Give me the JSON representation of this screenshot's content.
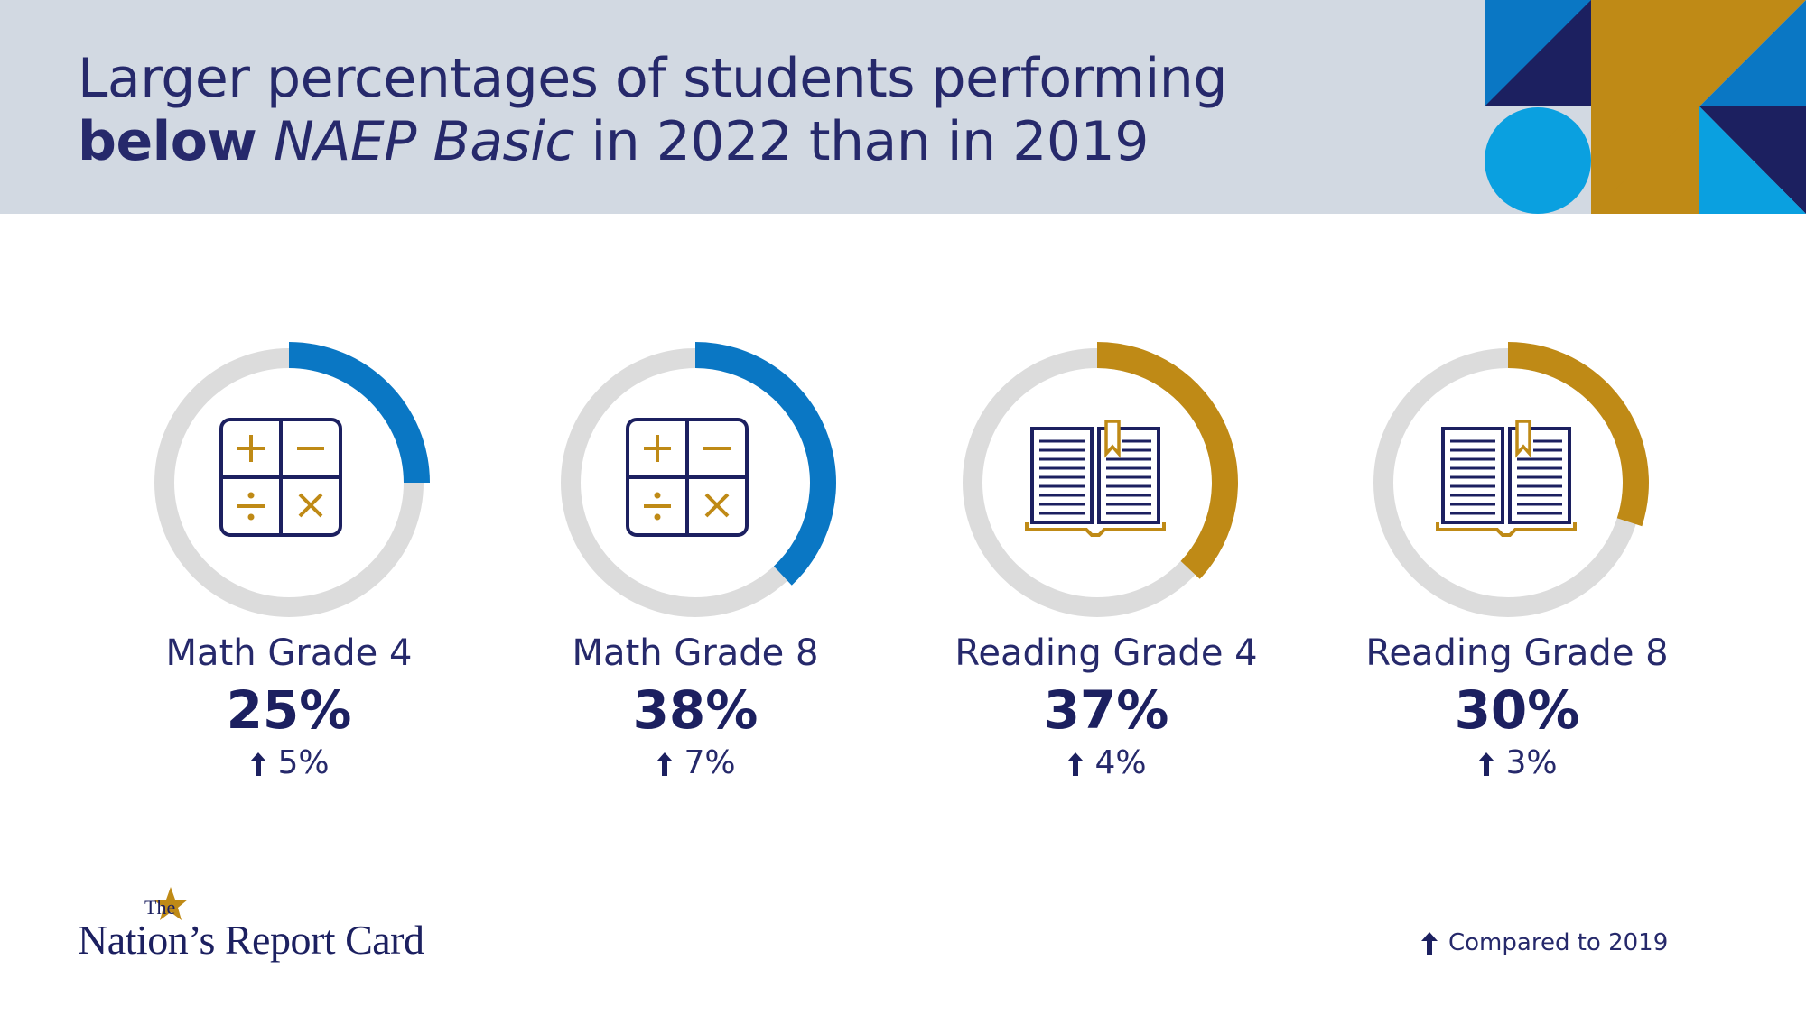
{
  "header": {
    "title_line1": "Larger percentages of students performing",
    "title_bold": "below",
    "title_italic": "NAEP Basic",
    "title_rest": "in 2022 than in 2019"
  },
  "colors": {
    "header_bg": "#d2d9e2",
    "math": "#0a77c4",
    "reading": "#bf8a16",
    "track": "#dcdcdc",
    "navy": "#1c2060"
  },
  "chart_data": {
    "type": "donut",
    "title": "Larger percentages of students performing below NAEP Basic in 2022 than in 2019",
    "categories": [
      "Math Grade 4",
      "Math Grade 8",
      "Reading Grade 4",
      "Reading Grade 8"
    ],
    "values": [
      25,
      38,
      37,
      30
    ],
    "value_labels": [
      "25%",
      "38%",
      "37%",
      "30%"
    ],
    "change_values": [
      5,
      7,
      4,
      3
    ],
    "change_labels": [
      "5%",
      "7%",
      "4%",
      "3%"
    ],
    "icons": [
      "math-operations-icon",
      "math-operations-icon",
      "open-book-icon",
      "open-book-icon"
    ],
    "subjects": [
      "math",
      "math",
      "reading",
      "reading"
    ],
    "legend": "Compared to 2019"
  },
  "logo": {
    "the": "The",
    "name": "Nation’s Report Card"
  }
}
